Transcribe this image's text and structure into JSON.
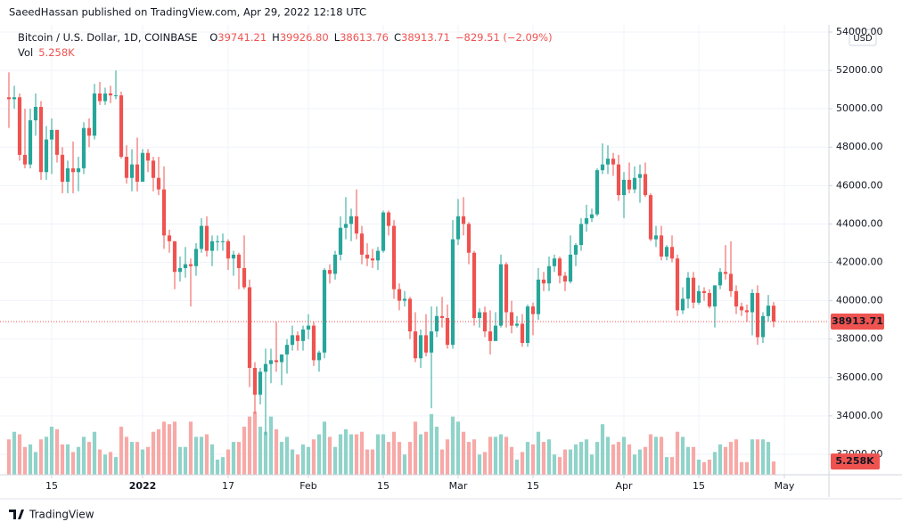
{
  "chart_data": {
    "type": "candlestick",
    "publisher": "SaeedHassan published on TradingView.com, Apr 29, 2022 12:18 UTC",
    "title": "Bitcoin / U.S. Dollar, 1D, COINBASE",
    "ohlc_legend": [
      {
        "key": "O",
        "text": "39741.21"
      },
      {
        "key": "H",
        "text": "39926.80"
      },
      {
        "key": "L",
        "text": "38613.76"
      },
      {
        "key": "C",
        "text": "38913.71"
      }
    ],
    "change": "−829.51 (−2.09%)",
    "currency": "USD",
    "brand": "TradingView",
    "up_color": "#26a69a",
    "down_color": "#ef5350",
    "open": [
      50600,
      50500,
      50600,
      47600,
      47100,
      49400,
      50100,
      46700,
      48400,
      48900,
      47600,
      46200,
      46900,
      46700,
      46900,
      49000,
      48600,
      50800,
      50400,
      50800,
      50700,
      50700,
      47500,
      46400,
      47100,
      46200,
      47700,
      47300,
      46400,
      45800,
      43400,
      43100,
      41500,
      41700,
      41900,
      41800,
      42700,
      43900,
      42600,
      43100,
      43100,
      43100,
      42200,
      42400,
      41700,
      40700,
      36500,
      35100,
      36300,
      36700,
      36900,
      36800,
      37200,
      37700,
      38200,
      37900,
      38500,
      38700,
      36900,
      37300,
      41600,
      41400,
      42400,
      43800,
      44000,
      44400,
      43500,
      42400,
      42200,
      42100,
      42600,
      44600,
      43900,
      40600,
      40000,
      40100,
      38400,
      37000,
      38200,
      37300,
      38400,
      39200,
      39100,
      37700,
      43200,
      44400,
      44000,
      42500,
      39100,
      39400,
      38400,
      37900,
      38700,
      41900,
      39400,
      38700,
      38800,
      37800,
      39700,
      39300,
      41100,
      40900,
      41800,
      42200,
      41300,
      41000,
      42400,
      42900,
      44000,
      44300,
      44500,
      46800,
      47100,
      47400,
      47100,
      45500,
      46300,
      45800,
      46400,
      46600,
      45500,
      43200,
      43400,
      42300,
      42800,
      42200,
      39500,
      40100,
      41200,
      39900,
      40500,
      40400,
      39700,
      40800,
      41500,
      41400,
      40500,
      39700,
      39500,
      39400,
      40400,
      38100,
      39200,
      39741.21
    ],
    "high": [
      51900,
      51200,
      50800,
      50000,
      50000,
      50800,
      50400,
      49100,
      49500,
      48900,
      48000,
      47300,
      48300,
      47500,
      49300,
      49500,
      51300,
      51400,
      51100,
      51200,
      52000,
      50900,
      48100,
      47900,
      48500,
      47900,
      47900,
      47500,
      47500,
      47000,
      43700,
      43100,
      42300,
      42800,
      42200,
      43000,
      44300,
      44400,
      43400,
      43400,
      43500,
      43200,
      42600,
      42500,
      43400,
      41100,
      36800,
      36500,
      37500,
      37500,
      38900,
      37200,
      38000,
      38700,
      38400,
      38700,
      39300,
      38900,
      37400,
      41700,
      41900,
      42600,
      44400,
      45400,
      44800,
      45800,
      43900,
      43000,
      42700,
      42800,
      44700,
      44700,
      44200,
      40900,
      40500,
      40200,
      39400,
      38500,
      39300,
      39700,
      39700,
      40200,
      39800,
      44200,
      45300,
      45400,
      44100,
      42600,
      39600,
      39700,
      39500,
      39400,
      42400,
      42000,
      40000,
      39200,
      39300,
      39800,
      39900,
      41700,
      41500,
      42300,
      42400,
      42300,
      41500,
      43400,
      43000,
      44300,
      45000,
      44800,
      46900,
      48200,
      48100,
      47700,
      47600,
      46700,
      47200,
      47000,
      47100,
      47200,
      45600,
      43900,
      43900,
      42900,
      43400,
      42400,
      40700,
      41500,
      41500,
      40800,
      40700,
      40600,
      40800,
      41700,
      42900,
      43100,
      40800,
      39900,
      39800,
      40600,
      40800,
      39400,
      40300,
      39926.8
    ],
    "low": [
      49000,
      50000,
      47300,
      46900,
      46900,
      48600,
      46300,
      46300,
      46600,
      47200,
      45600,
      45600,
      45600,
      45700,
      46600,
      48000,
      48400,
      50200,
      50200,
      50300,
      50500,
      47400,
      46100,
      45700,
      45700,
      46200,
      46700,
      45700,
      45500,
      42700,
      42500,
      40600,
      41000,
      41200,
      39700,
      41300,
      42500,
      42300,
      41800,
      42600,
      42600,
      41600,
      41300,
      40600,
      40600,
      35500,
      34100,
      34600,
      33000,
      35700,
      36300,
      35600,
      36200,
      37400,
      37400,
      37400,
      38000,
      36600,
      36300,
      37000,
      40900,
      41100,
      42100,
      43200,
      43100,
      43200,
      41900,
      41800,
      41700,
      41600,
      42500,
      43400,
      40100,
      39500,
      39700,
      38000,
      36800,
      36500,
      37100,
      34400,
      38100,
      38600,
      37500,
      37500,
      42900,
      43400,
      41900,
      38700,
      38600,
      38100,
      37200,
      37900,
      38600,
      38600,
      38300,
      38600,
      37600,
      37600,
      38200,
      39000,
      40500,
      40500,
      41500,
      40900,
      40500,
      40900,
      41800,
      42600,
      43600,
      44100,
      44400,
      46600,
      46600,
      46500,
      45200,
      44300,
      45600,
      45600,
      45100,
      45400,
      43100,
      42800,
      42100,
      42100,
      42000,
      39200,
      39300,
      39600,
      39600,
      39800,
      40000,
      39600,
      38600,
      40600,
      41100,
      40200,
      39300,
      39200,
      38900,
      38200,
      37700,
      37800,
      38900,
      38613.76
    ],
    "close": [
      50500,
      50600,
      47600,
      47100,
      49400,
      50100,
      46700,
      48400,
      48900,
      47600,
      46200,
      46900,
      46700,
      46900,
      49000,
      48600,
      50800,
      50400,
      50800,
      50700,
      50700,
      47500,
      46400,
      47100,
      46200,
      47700,
      47300,
      46400,
      45800,
      43400,
      43100,
      41500,
      41700,
      41900,
      41800,
      42700,
      43900,
      42600,
      43100,
      43100,
      43100,
      42200,
      42400,
      41700,
      40700,
      36500,
      35100,
      36300,
      36700,
      36900,
      36800,
      37200,
      37700,
      38200,
      37900,
      38500,
      38700,
      36900,
      37300,
      41600,
      41400,
      42400,
      43800,
      44000,
      44400,
      43500,
      42400,
      42200,
      42100,
      42600,
      44600,
      43900,
      40600,
      40000,
      40100,
      38400,
      37000,
      38200,
      37300,
      38400,
      39200,
      39100,
      37700,
      43200,
      44400,
      44000,
      42500,
      39100,
      39400,
      38400,
      37900,
      38700,
      41900,
      39400,
      38700,
      38800,
      37800,
      39700,
      39300,
      41100,
      40900,
      41800,
      42200,
      41300,
      41000,
      42400,
      42900,
      44000,
      44300,
      44500,
      46800,
      47100,
      47400,
      47100,
      45500,
      46300,
      45800,
      46400,
      46600,
      45500,
      43200,
      43400,
      42300,
      42800,
      42200,
      39500,
      40100,
      41200,
      39900,
      40500,
      40400,
      39700,
      40800,
      41500,
      41400,
      40500,
      39700,
      39500,
      39400,
      40400,
      38100,
      39200,
      39743.22,
      38913.71
    ],
    "xlim": [
      -1.6667,
      153.3333
    ],
    "xticks": [
      {
        "value": 8,
        "label": "15"
      },
      {
        "value": 25,
        "label": "2022"
      },
      {
        "value": 41,
        "label": "17"
      },
      {
        "value": 56,
        "label": "Feb"
      },
      {
        "value": 70,
        "label": "15"
      },
      {
        "value": 84,
        "label": "Mar"
      },
      {
        "value": 98,
        "label": "15"
      },
      {
        "value": 115,
        "label": "Apr"
      },
      {
        "value": 129,
        "label": "15"
      },
      {
        "value": 145,
        "label": "May"
      }
    ],
    "ylim": [
      30930,
      54370
    ],
    "yticks": [
      {
        "value": 32000,
        "label": "32000.00"
      },
      {
        "value": 34000,
        "label": "34000.00"
      },
      {
        "value": 36000,
        "label": "36000.00"
      },
      {
        "value": 38000,
        "label": "38000.00"
      },
      {
        "value": 40000,
        "label": "40000.00"
      },
      {
        "value": 42000,
        "label": "42000.00"
      },
      {
        "value": 44000,
        "label": "44000.00"
      },
      {
        "value": 46000,
        "label": "46000.00"
      },
      {
        "value": 48000,
        "label": "48000.00"
      },
      {
        "value": 50000,
        "label": "50000.00"
      },
      {
        "value": 52000,
        "label": "52000.00"
      },
      {
        "value": 54000,
        "label": "54000.00"
      }
    ],
    "grid": true,
    "volume": {
      "name": "Vol",
      "label": "5.258K",
      "ylim": [
        0,
        25000
      ],
      "up_color": "#8fd3c9",
      "down_color": "#f7a9a7",
      "values": [
        14000,
        17000,
        16000,
        11000,
        12000,
        9000,
        14000,
        15000,
        19000,
        18000,
        12000,
        12000,
        9000,
        11000,
        15000,
        13000,
        17000,
        10000,
        8000,
        9000,
        7000,
        19000,
        15000,
        13000,
        13000,
        10000,
        11000,
        17000,
        18000,
        21000,
        20000,
        21000,
        11000,
        11000,
        21000,
        15000,
        15000,
        16000,
        12000,
        6000,
        7000,
        10000,
        13000,
        13000,
        19000,
        23000,
        25000,
        19000,
        17000,
        23000,
        18000,
        13000,
        15000,
        10000,
        8000,
        12000,
        11000,
        14000,
        16000,
        21000,
        15000,
        11000,
        16000,
        18000,
        16000,
        16000,
        17000,
        10000,
        10000,
        16000,
        16000,
        13000,
        17000,
        13000,
        8000,
        13000,
        21000,
        16000,
        17000,
        24000,
        19000,
        10000,
        14000,
        23000,
        21000,
        17000,
        13000,
        14000,
        8000,
        9000,
        15000,
        15000,
        16000,
        15000,
        11000,
        6000,
        9000,
        13000,
        12000,
        17000,
        13000,
        14000,
        8000,
        7000,
        10000,
        10000,
        12000,
        13000,
        14000,
        8000,
        13000,
        20000,
        15000,
        12000,
        13000,
        15000,
        12000,
        8000,
        10000,
        11000,
        16000,
        15000,
        15000,
        7000,
        7000,
        17000,
        15000,
        11000,
        11000,
        6000,
        5000,
        6000,
        9000,
        12000,
        11000,
        13000,
        14000,
        5000,
        5000,
        14000,
        14000,
        14000,
        13000,
        5258
      ]
    }
  }
}
